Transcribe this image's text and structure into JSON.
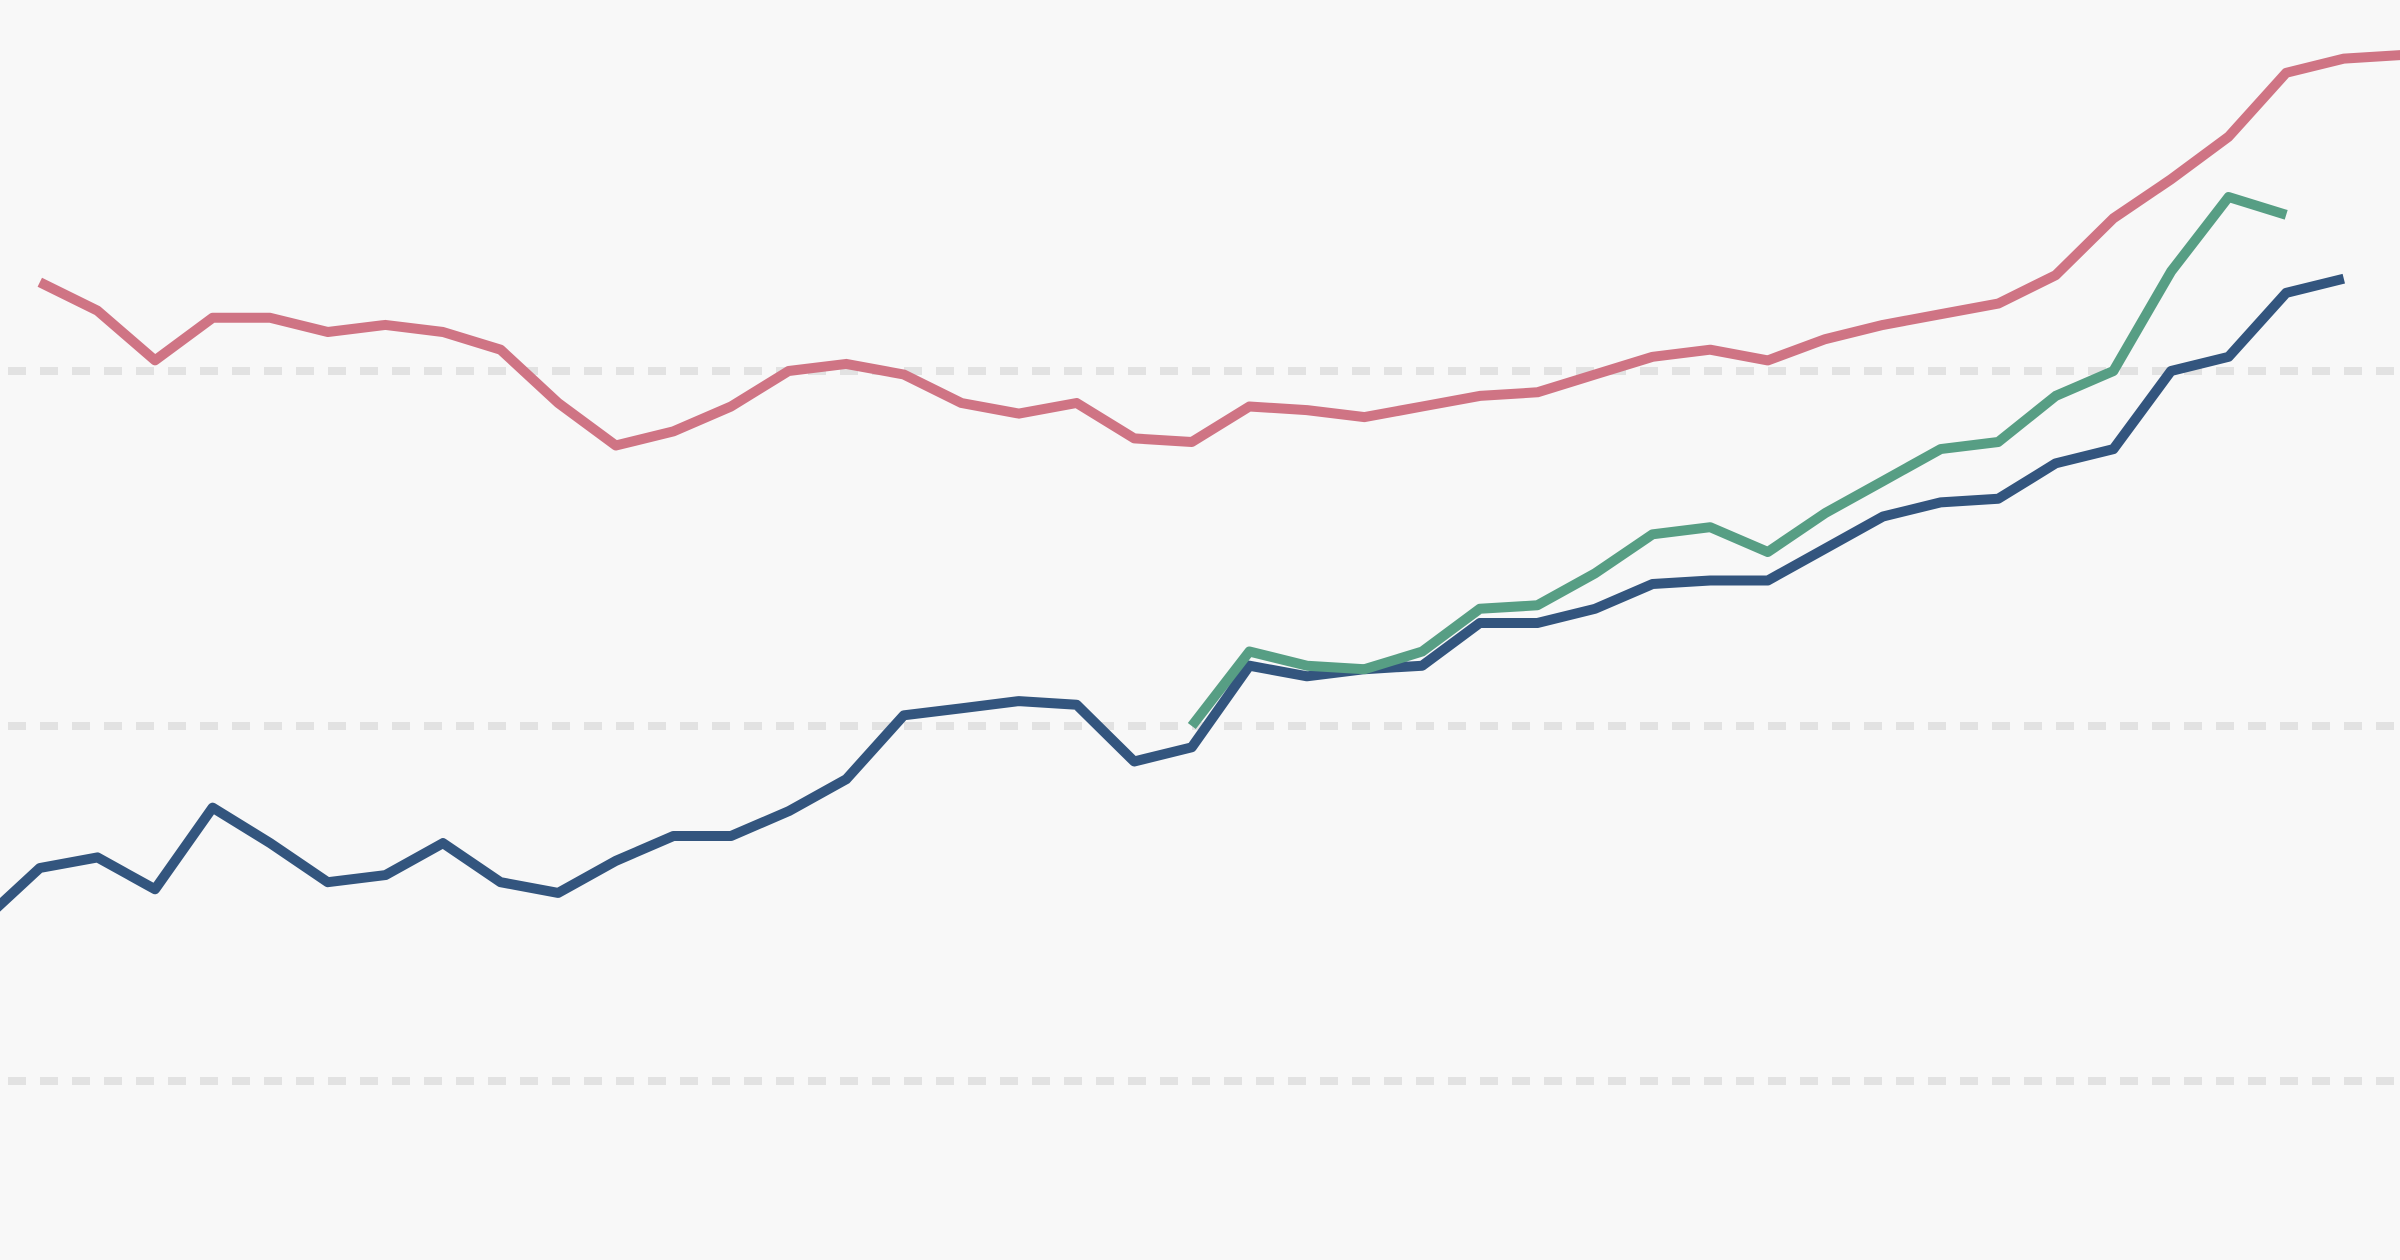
{
  "chart_data": {
    "type": "line",
    "title": "",
    "xlabel": "",
    "ylabel": "",
    "grid": true,
    "grid_values": [
      0,
      1,
      2
    ],
    "legend": "none",
    "background": "#f8f8f8",
    "grid_color": "#e2e2e2",
    "ylim": [
      -0.5,
      3.05
    ],
    "xlim": [
      0,
      42
    ],
    "series": [
      {
        "color": "#cf7484",
        "start_index": 1,
        "values": [
          2.25,
          2.17,
          2.03,
          2.15,
          2.15,
          2.11,
          2.13,
          2.11,
          2.06,
          1.91,
          1.79,
          1.83,
          1.9,
          2.0,
          2.02,
          1.99,
          1.91,
          1.88,
          1.91,
          1.81,
          1.8,
          1.9,
          1.89,
          1.87,
          1.9,
          1.93,
          1.94,
          1.99,
          2.04,
          2.06,
          2.03,
          2.09,
          2.13,
          2.16,
          2.19,
          2.27,
          2.43,
          2.54,
          2.66,
          2.84,
          2.88,
          2.89
        ]
      },
      {
        "color": "#33557e",
        "start_index": 0,
        "values": [
          0.45,
          0.6,
          0.63,
          0.54,
          0.77,
          0.67,
          0.56,
          0.58,
          0.67,
          0.56,
          0.53,
          0.62,
          0.69,
          0.69,
          0.76,
          0.85,
          1.03,
          1.05,
          1.07,
          1.06,
          0.9,
          0.94,
          1.17,
          1.14,
          1.16,
          1.17,
          1.29,
          1.29,
          1.33,
          1.4,
          1.41,
          1.41,
          1.5,
          1.59,
          1.63,
          1.64,
          1.74,
          1.78,
          2.0,
          2.04,
          2.22,
          2.26
        ]
      },
      {
        "color": "#579e84",
        "start_index": 21,
        "values": [
          1.0,
          1.21,
          1.17,
          1.16,
          1.21,
          1.33,
          1.34,
          1.43,
          1.54,
          1.56,
          1.49,
          1.6,
          1.69,
          1.78,
          1.8,
          1.93,
          2.0,
          2.28,
          2.49,
          2.44
        ]
      }
    ]
  }
}
